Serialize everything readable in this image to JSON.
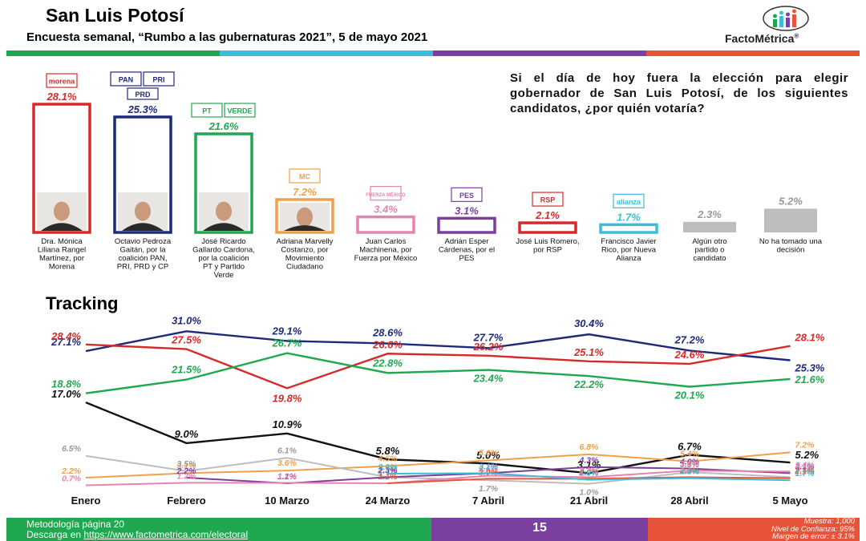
{
  "header": {
    "title": "San Luis Potosí",
    "subtitle": "Encuesta semanal, “Rumbo a las gubernaturas 2021”, 5 de mayo 2021",
    "logo_text": "FactoMétrica",
    "logo_reg": "®"
  },
  "strip_colors": [
    "#1fa84f",
    "#3bbfd9",
    "#7b3fa0",
    "#e8543a"
  ],
  "question": "Si el día de hoy fuera la elección para elegir gobernador de San Luis Potosí, de los siguientes candidatos, ¿por quién votaría?",
  "chart_data": [
    {
      "type": "bar",
      "categories": [
        "Dra. Mónica Liliana Rangel Martínez, por Morena",
        "Octavio Pedroza Gaitán, por la coalición PAN, PRI, PRD y CP",
        "José Ricardo Gallardo Cardona, por la coalición PT y Partido Verde",
        "Adriana Marvelly Costanzo, por Movimiento Ciudadano",
        "Juan Carlos Machinena, por Fuerza por México",
        "Adrián Esper Cárdenas, por el PES",
        "José Luis Romero, por RSP",
        "Francisco Javier Rico, por Nueva Alianza",
        "Algún otro partido o candidato",
        "No ha tomado una decisión"
      ],
      "values": [
        28.1,
        25.3,
        21.6,
        7.2,
        3.4,
        3.1,
        2.1,
        1.7,
        2.3,
        5.2
      ],
      "value_labels": [
        "28.1%",
        "25.3%",
        "21.6%",
        "7.2%",
        "3.4%",
        "3.1%",
        "2.1%",
        "1.7%",
        "2.3%",
        "5.2%"
      ],
      "party_logos": [
        [
          "morena"
        ],
        [
          "PAN",
          "PRI",
          "PRD"
        ],
        [
          "PT",
          "VERDE"
        ],
        [
          "MC"
        ],
        [
          "FUERZA MÉXICO"
        ],
        [
          "PES"
        ],
        [
          "RSP"
        ],
        [
          "alianza"
        ],
        [],
        []
      ],
      "colors": [
        "#d62a2a",
        "#1f2a7a",
        "#1fa84f",
        "#f0a04b",
        "#e882b0",
        "#7b3fa0",
        "#d62a2a",
        "#3bbfd9",
        "#bdbdbd",
        "#bdbdbd"
      ],
      "title": "",
      "xlabel": "",
      "ylabel": "",
      "ylim": [
        0,
        28.1
      ]
    },
    {
      "type": "line",
      "title": "Tracking",
      "x": [
        "Enero",
        "Febrero",
        "10 Marzo",
        "24 Marzo",
        "7 Abril",
        "21 Abril",
        "28 Abril",
        "5 Mayo"
      ],
      "ylim": [
        0,
        32
      ],
      "series": [
        {
          "name": "Octavio Pedroza Gaitán",
          "color": "#1f2a7a",
          "values": [
            27.1,
            31.0,
            29.1,
            28.6,
            27.7,
            30.4,
            27.2,
            25.3
          ]
        },
        {
          "name": "Dra. Mónica Liliana Rangel Martínez",
          "color": "#d62a2a",
          "values": [
            28.4,
            27.5,
            19.8,
            26.6,
            26.2,
            25.1,
            24.6,
            28.1
          ]
        },
        {
          "name": "José Ricardo Gallardo Cardona",
          "color": "#1fa84f",
          "values": [
            18.8,
            21.5,
            26.7,
            22.8,
            23.4,
            22.2,
            20.1,
            21.6
          ]
        },
        {
          "name": "No ha tomado una decisión",
          "color": "#111111",
          "values": [
            17.0,
            9.0,
            10.9,
            5.8,
            5.0,
            3.1,
            6.7,
            5.2
          ]
        },
        {
          "name": "Adriana Marvelly Costanzo",
          "color": "#f0a04b",
          "values": [
            2.2,
            3.1,
            3.6,
            4.5,
            5.6,
            6.8,
            5.4,
            7.2
          ]
        },
        {
          "name": "Algún otro partido o candidato",
          "color": "#bdbdbd",
          "values": [
            6.5,
            3.5,
            6.1,
            2.3,
            1.7,
            1.0,
            3.3,
            2.3
          ]
        },
        {
          "name": "Adrián Esper Cárdenas",
          "color": "#7b3fa0",
          "values": [
            null,
            2.2,
            1.1,
            2.3,
            3.1,
            4.3,
            4.0,
            3.1
          ]
        },
        {
          "name": "Juan Carlos Machinena",
          "color": "#e882b0",
          "values": [
            0.7,
            1.2,
            1.2,
            1.1,
            2.6,
            2.3,
            3.6,
            3.4
          ]
        },
        {
          "name": "José Luis Romero",
          "color": "#e8543a",
          "values": [
            null,
            null,
            null,
            1.1,
            2.0,
            2.0,
            2.3,
            2.1
          ]
        },
        {
          "name": "Francisco Javier Rico",
          "color": "#3bbfd9",
          "values": [
            null,
            null,
            null,
            3.0,
            3.1,
            1.8,
            2.1,
            1.7
          ]
        }
      ]
    }
  ],
  "footer": {
    "methodology": "Metodología página 20",
    "download_prefix": "Descarga en ",
    "download_link": "https://www.factometrica.com/electoral",
    "page": "15",
    "sample": "Muestra: 1,000",
    "confidence": "Nivel de Confianza: 95%",
    "error": "Margen de error: ± 3.1%"
  }
}
